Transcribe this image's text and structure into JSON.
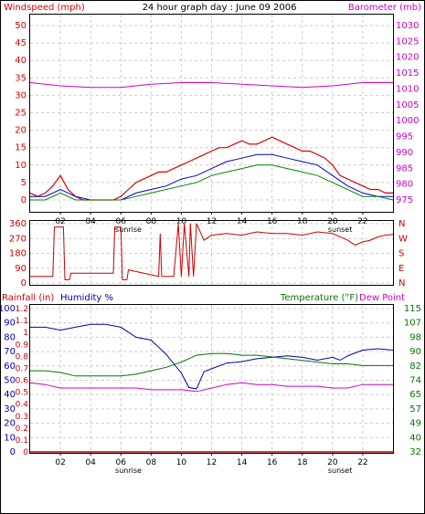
{
  "title": "24 hour graph day : June 09 2006",
  "colors": {
    "wind": "#dd0000",
    "gust_avg": "#0000cc",
    "wind_avg": "#008800",
    "barometer": "#cc00cc",
    "direction": "#cc0000",
    "humidity": "#0000aa",
    "temperature": "#007700",
    "dewpoint": "#cc00cc",
    "rainfall": "#cc0000",
    "grid": "#cccccc",
    "frame": "#000000"
  },
  "chart_data": [
    {
      "type": "line",
      "name": "wind-barometer",
      "left_axis_label": "Windspeed (mph)",
      "right_axis_label": "Barometer (mb)",
      "left_ticks": [
        "0",
        "5",
        "10",
        "15",
        "20",
        "25",
        "30",
        "35",
        "40",
        "45",
        "50"
      ],
      "right_ticks": [
        "975",
        "980",
        "985",
        "990",
        "995",
        "1000",
        "1005",
        "1010",
        "1015",
        "1020",
        "1025",
        "1030"
      ],
      "ylim_left": [
        0,
        50
      ],
      "ylim_right": [
        975,
        1030
      ],
      "x_ticks": [
        "02",
        "04",
        "06",
        "08",
        "10",
        "12",
        "14",
        "16",
        "18",
        "20",
        "22"
      ],
      "x_ticks_extra": [
        "sunrise",
        "sunset"
      ],
      "series": [
        {
          "key": "wind",
          "x": [
            0,
            0.5,
            1,
            1.5,
            2,
            2.5,
            3,
            3.5,
            4,
            4.5,
            5,
            5.5,
            6,
            6.5,
            7,
            7.5,
            8,
            8.5,
            9,
            9.5,
            10,
            10.5,
            11,
            11.5,
            12,
            12.5,
            13,
            13.5,
            14,
            14.5,
            15,
            15.5,
            16,
            16.5,
            17,
            17.5,
            18,
            18.5,
            19,
            19.5,
            20,
            20.5,
            21,
            21.5,
            22,
            22.5,
            23,
            23.5,
            24
          ],
          "y": [
            2,
            1,
            2,
            4,
            7,
            3,
            1,
            0,
            0,
            0,
            0,
            0,
            1,
            3,
            5,
            6,
            7,
            8,
            8,
            9,
            10,
            11,
            12,
            13,
            14,
            15,
            15,
            16,
            17,
            16,
            16,
            17,
            18,
            17,
            16,
            15,
            14,
            14,
            13,
            12,
            10,
            7,
            6,
            5,
            4,
            3,
            3,
            2,
            2
          ]
        },
        {
          "key": "gust_avg",
          "x": [
            0,
            1,
            2,
            3,
            4,
            5,
            6,
            7,
            8,
            9,
            10,
            11,
            12,
            13,
            14,
            15,
            16,
            17,
            18,
            19,
            20,
            21,
            22,
            23,
            24
          ],
          "y": [
            1,
            1,
            3,
            1,
            0,
            0,
            0,
            2,
            3,
            4,
            6,
            7,
            9,
            11,
            12,
            13,
            13,
            12,
            11,
            10,
            7,
            4,
            2,
            1,
            1
          ]
        },
        {
          "key": "wind_avg",
          "x": [
            0,
            1,
            2,
            3,
            4,
            5,
            6,
            7,
            8,
            9,
            10,
            11,
            12,
            13,
            14,
            15,
            16,
            17,
            18,
            19,
            20,
            21,
            22,
            23,
            24
          ],
          "y": [
            0,
            0,
            2,
            0,
            0,
            0,
            0,
            1,
            2,
            3,
            4,
            5,
            7,
            8,
            9,
            10,
            10,
            9,
            8,
            7,
            5,
            3,
            1,
            1,
            0
          ]
        },
        {
          "key": "barometer",
          "x": [
            0,
            2,
            4,
            6,
            8,
            10,
            12,
            14,
            16,
            18,
            20,
            22,
            24
          ],
          "y": [
            1012,
            1011,
            1010.5,
            1010.5,
            1011.5,
            1012,
            1012,
            1011.5,
            1011,
            1010.5,
            1011,
            1012,
            1012
          ]
        }
      ]
    },
    {
      "type": "line",
      "name": "wind-direction",
      "left_ticks": [
        "0",
        "90",
        "180",
        "270",
        "360"
      ],
      "right_ticks": [
        "N",
        "W",
        "S",
        "E",
        "N"
      ],
      "ylim": [
        0,
        360
      ],
      "series": [
        {
          "key": "direction",
          "x": [
            0,
            1.5,
            1.6,
            2.2,
            2.3,
            2.6,
            2.7,
            5.5,
            5.6,
            6,
            6.1,
            6.4,
            6.5,
            8.5,
            8.6,
            8.7,
            9,
            9.5,
            9.8,
            10,
            10.2,
            10.5,
            10.6,
            10.8,
            11,
            11.5,
            12,
            13,
            14,
            15,
            16,
            17,
            18,
            19,
            20,
            20.5,
            21,
            21.5,
            22,
            22.5,
            23,
            23.5,
            24
          ],
          "y": [
            40,
            40,
            340,
            340,
            20,
            20,
            60,
            60,
            340,
            340,
            20,
            20,
            80,
            40,
            300,
            40,
            40,
            40,
            360,
            40,
            360,
            40,
            360,
            40,
            360,
            260,
            290,
            300,
            290,
            310,
            300,
            300,
            290,
            310,
            300,
            280,
            260,
            230,
            250,
            260,
            280,
            290,
            295
          ]
        }
      ]
    },
    {
      "type": "line",
      "name": "temperature-humidity",
      "left_axis_label": "Rainfall (in)",
      "left_axis_label_2": "Humidity %",
      "right_axis_label": "Temperature (°F)",
      "right_axis_label_2": "Dew Point",
      "humidity_ticks": [
        "0",
        "10",
        "20",
        "30",
        "40",
        "50",
        "60",
        "70",
        "80",
        "90",
        "100"
      ],
      "rain_ticks": [
        "0",
        "0.1",
        "0.2",
        "0.3",
        "0.4",
        "0.5",
        "0.6",
        "0.7",
        "0.8",
        "0.9",
        "1",
        "1.1",
        "1.2"
      ],
      "temp_ticks": [
        "32",
        "40",
        "49",
        "57",
        "65",
        "74",
        "82",
        "90",
        "98",
        "107",
        "115"
      ],
      "ylim_humidity": [
        0,
        100
      ],
      "ylim_temp": [
        32,
        115
      ],
      "series": [
        {
          "key": "humidity",
          "x": [
            0,
            1,
            2,
            3,
            4,
            5,
            6,
            7,
            8,
            9,
            10,
            10.5,
            11,
            11.5,
            12,
            13,
            14,
            15,
            16,
            17,
            18,
            19,
            20,
            20.5,
            21,
            22,
            23,
            24
          ],
          "y": [
            87,
            87,
            85,
            87,
            89,
            89,
            87,
            80,
            78,
            68,
            55,
            45,
            44,
            56,
            58,
            62,
            63,
            65,
            66,
            67,
            66,
            64,
            66,
            64,
            67,
            71,
            72,
            71
          ]
        },
        {
          "key": "temperature",
          "x": [
            0,
            1,
            2,
            3,
            4,
            5,
            6,
            7,
            8,
            9,
            10,
            11,
            12,
            13,
            14,
            15,
            16,
            17,
            18,
            19,
            20,
            21,
            22,
            23,
            24
          ],
          "y": [
            79,
            79,
            78,
            76,
            76,
            76,
            76,
            77,
            79,
            81,
            84,
            88,
            89,
            89,
            88,
            88,
            87,
            86,
            85,
            84,
            83,
            83,
            82,
            82,
            82
          ]
        },
        {
          "key": "dewpoint",
          "x": [
            0,
            1,
            2,
            3,
            4,
            5,
            6,
            7,
            8,
            9,
            10,
            11,
            12,
            13,
            14,
            15,
            16,
            17,
            18,
            19,
            20,
            21,
            22,
            23,
            24
          ],
          "y": [
            72,
            71,
            69,
            69,
            69,
            69,
            69,
            69,
            68,
            68,
            68,
            67,
            69,
            71,
            72,
            71,
            71,
            70,
            70,
            70,
            69,
            69,
            71,
            71,
            71
          ]
        },
        {
          "key": "rainfall",
          "x": [
            0,
            24
          ],
          "y": [
            0,
            0
          ]
        }
      ]
    }
  ]
}
